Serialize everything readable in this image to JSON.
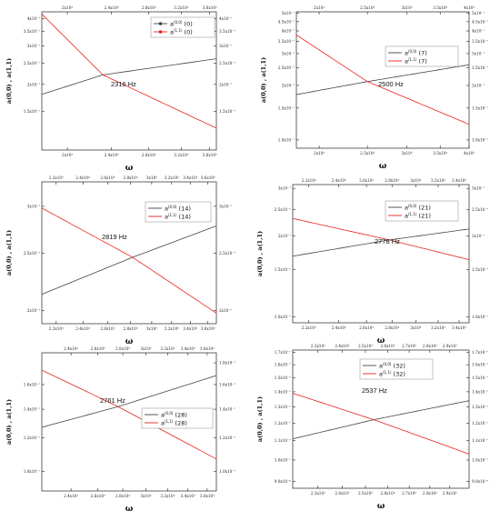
{
  "colors": {
    "black_series": "#444444",
    "red_series": "#e8211f",
    "axis": "#222222"
  },
  "xlabel": "ω",
  "ylabel_panels": "a(0,0) , a(1,1)",
  "chart_data": [
    {
      "type": "line",
      "panel": "n=0",
      "xscale": "log",
      "yscale": "log",
      "xlim": [
        1800,
        3700
      ],
      "ylim": [
        1e-07,
        4.3e-07
      ],
      "x_ticks": [
        2000,
        2400,
        2800,
        3200,
        3600
      ],
      "x_tick_labels_bottom": [
        "2x10³",
        "2.4x10³",
        "2.8x10³",
        "3.2x10³",
        "3.6x10³"
      ],
      "x_tick_labels_top": [
        "2x10³",
        "2.4x10³",
        "2.8x10³",
        "3.2x10³",
        "3.6x10³"
      ],
      "y_ticks_left": [
        1.5e-07,
        2e-07,
        2.5e-07,
        3e-07,
        3.5e-07,
        4e-07
      ],
      "y_tick_labels_left": [
        "1.5x10⁻⁷",
        "2x10⁻⁷",
        "2.5x10⁻⁷",
        "3x10⁻⁷",
        "3.5x10⁻⁷",
        "4x10⁻⁷"
      ],
      "y_ticks_right": [
        1.5e-07,
        2e-07,
        2.5e-07,
        3e-07,
        3.5e-07,
        4e-07
      ],
      "y_tick_labels_right": [
        "1.5x10⁻⁷",
        "2x10⁻⁷",
        "2.5x10⁻⁷",
        "3x10⁻⁷",
        "3.5x10⁻⁷",
        "4x10⁻⁷"
      ],
      "annotation": "2316 Hz",
      "legend_position": "top-right",
      "legend_markers": true,
      "series": [
        {
          "name": "a(0,0) (0)",
          "label_base": "a",
          "label_sup": "(0,0)",
          "label_tail": " (0)",
          "color": "black",
          "x": [
            1800,
            2316,
            3700
          ],
          "y": [
            1.8e-07,
            2.21e-07,
            2.62e-07
          ]
        },
        {
          "name": "a(1,1) (0)",
          "label_base": "a",
          "label_sup": "(1,1)",
          "label_tail": " (0)",
          "color": "red",
          "x": [
            1800,
            2316,
            3700
          ],
          "y": [
            4.2e-07,
            2.21e-07,
            1.26e-07
          ]
        }
      ]
    },
    {
      "type": "line",
      "panel": "n=7",
      "xscale": "log",
      "yscale": "log",
      "xlim": [
        1800,
        4000
      ],
      "ylim": [
        9e-08,
        5.1e-07
      ],
      "x_ticks": [
        2000,
        2500,
        3000,
        3500,
        4000
      ],
      "x_tick_labels_bottom": [
        "2x10³",
        "2.5x10³",
        "3x10³",
        "3.5x10³",
        "4x10³"
      ],
      "x_tick_labels_top": [
        "2x10³",
        "2.5x10³",
        "3x10³",
        "3.5x10³",
        "4x10³"
      ],
      "y_ticks_left": [
        1e-07,
        1.5e-07,
        2e-07,
        2.5e-07,
        3e-07,
        3.5e-07,
        4e-07,
        4.5e-07,
        5e-07
      ],
      "y_tick_labels_left": [
        "1.0x10⁻⁷",
        "1.5x10⁻⁷",
        "2x10⁻⁷",
        "2.5x10⁻⁷",
        "3x10⁻⁷",
        "3.5x10⁻⁷",
        "4x10⁻⁷",
        "4.5x10⁻⁷",
        "5x10⁻⁷"
      ],
      "y_ticks_right": [
        1e-07,
        1.5e-07,
        2e-07,
        2.5e-07,
        3e-07,
        3.5e-07,
        4e-07,
        4.5e-07,
        5e-07
      ],
      "y_tick_labels_right": [
        "1.0x10⁻⁷",
        "1.5x10⁻⁷",
        "2x10⁻⁷",
        "2.5x10⁻⁷",
        "3x10⁻⁷",
        "3.5x10⁻⁷",
        "4x10⁻⁷",
        "4.5x10⁻⁷",
        "5x10⁻⁷"
      ],
      "annotation": "2500 Hz",
      "legend_position": "top-right",
      "legend_markers": false,
      "series": [
        {
          "name": "a(0,0) (7)",
          "label_base": "a",
          "label_sup": "(0,0)",
          "label_tail": " (7)",
          "color": "black",
          "x": [
            1800,
            2500,
            4000
          ],
          "y": [
            1.78e-07,
            2.1e-07,
            2.6e-07
          ]
        },
        {
          "name": "a(1,1) (7)",
          "label_base": "a",
          "label_sup": "(1,1)",
          "label_tail": " (7)",
          "color": "red",
          "x": [
            1800,
            2500,
            4000
          ],
          "y": [
            3.8e-07,
            2.1e-07,
            1.22e-07
          ]
        }
      ]
    },
    {
      "type": "line",
      "panel": "n=14",
      "xscale": "log",
      "yscale": "log",
      "xlim": [
        2100,
        3700
      ],
      "ylim": [
        1.9e-07,
        3.3e-07
      ],
      "x_ticks": [
        2200,
        2400,
        2600,
        2800,
        3000,
        3200,
        3400,
        3600
      ],
      "x_tick_labels_bottom": [
        "2.2x10³",
        "2.4x10³",
        "2.6x10³",
        "2.8x10³",
        "3x10³",
        "3.2x10³",
        "3.4x10³",
        "3.6x10³"
      ],
      "x_tick_labels_top": [
        "2.2x10³",
        "2.4x10³",
        "2.6x10³",
        "2.8x10³",
        "3x10³",
        "3.2x10³",
        "3.4x10³",
        "3.6x10³"
      ],
      "y_ticks_left": [
        2e-07,
        2.5e-07,
        3e-07
      ],
      "y_tick_labels_left": [
        "2x10⁻⁷",
        "2.5x10⁻⁷",
        "3x10⁻⁷"
      ],
      "y_ticks_right": [
        2e-07,
        2.5e-07,
        3e-07
      ],
      "y_tick_labels_right": [
        "2x10⁻⁷",
        "2.5x10⁻⁷",
        "3x10⁻⁷"
      ],
      "annotation": "2819 Hz",
      "legend_position": "top-right",
      "legend_markers": false,
      "series": [
        {
          "name": "a(0,0) (14)",
          "label_base": "a",
          "label_sup": "(0,0)",
          "label_tail": " (14)",
          "color": "black",
          "x": [
            2100,
            2819,
            3700
          ],
          "y": [
            2.13e-07,
            2.46e-07,
            2.78e-07
          ]
        },
        {
          "name": "a(1,1) (14)",
          "label_base": "a",
          "label_sup": "(1,1)",
          "label_tail": " (14)",
          "color": "red",
          "x": [
            2100,
            2819,
            3700
          ],
          "y": [
            2.98e-07,
            2.46e-07,
            1.98e-07
          ]
        }
      ]
    },
    {
      "type": "line",
      "panel": "n=21",
      "xscale": "log",
      "yscale": "log",
      "xlim": [
        2100,
        3500
      ],
      "ylim": [
        9.5e-08,
        3.1e-07
      ],
      "x_ticks": [
        2200,
        2400,
        2600,
        2800,
        3000,
        3200,
        3400
      ],
      "x_tick_labels_bottom": [
        "2.2x10³",
        "2.4x10³",
        "2.6x10³",
        "2.8x10³",
        "3x10³",
        "3.2x10³",
        "3.4x10³"
      ],
      "x_tick_labels_top": [
        "2.2x10³",
        "2.4x10³",
        "2.6x10³",
        "2.8x10³",
        "3x10³",
        "3.2x10³",
        "3.4x10³"
      ],
      "y_ticks_left": [
        1e-07,
        1.5e-07,
        2e-07,
        2.5e-07,
        3e-07
      ],
      "y_tick_labels_left": [
        "1.0x10⁻⁷",
        "1.5x10⁻⁷",
        "2x10⁻⁷",
        "2.5x10⁻⁷",
        "3x10⁻⁷"
      ],
      "y_ticks_right": [
        1e-07,
        1.5e-07,
        2e-07,
        2.5e-07,
        3e-07
      ],
      "y_tick_labels_right": [
        "1.0x10⁻⁷",
        "1.5x10⁻⁷",
        "2x10⁻⁷",
        "2.5x10⁻⁷",
        "3x10⁻⁷"
      ],
      "annotation": "2778 Hz",
      "legend_position": "top-right",
      "legend_markers": false,
      "series": [
        {
          "name": "a(0,0) (21)",
          "label_base": "a",
          "label_sup": "(0,0)",
          "label_tail": " (21)",
          "color": "black",
          "x": [
            2100,
            2778,
            3500
          ],
          "y": [
            1.68e-07,
            1.93e-07,
            2.12e-07
          ]
        },
        {
          "name": "a(1,1) (21)",
          "label_base": "a",
          "label_sup": "(1,1)",
          "label_tail": " (21)",
          "color": "red",
          "x": [
            2100,
            2778,
            3500
          ],
          "y": [
            2.32e-07,
            1.93e-07,
            1.63e-07
          ]
        }
      ]
    },
    {
      "type": "line",
      "panel": "n=28",
      "xscale": "log",
      "yscale": "log",
      "xlim": [
        2200,
        3700
      ],
      "ylim": [
        9e-08,
        1.9e-07
      ],
      "x_ticks": [
        2400,
        2600,
        2800,
        3000,
        3200,
        3400,
        3600
      ],
      "x_tick_labels_bottom": [
        "2.4x10³",
        "2.6x10³",
        "2.8x10³",
        "3x10³",
        "3.2x10³",
        "3.4x10³",
        "3.6x10³"
      ],
      "x_tick_labels_top": [
        "2.4x10³",
        "2.6x10³",
        "2.8x10³",
        "3x10³",
        "3.2x10³",
        "3.4x10³",
        "3.6x10³"
      ],
      "y_ticks_left": [
        1e-07,
        1.2e-07,
        1.4e-07,
        1.6e-07
      ],
      "y_tick_labels_left": [
        "1.0x10⁻⁷",
        "1.2x10⁻⁷",
        "1.4x10⁻⁷",
        "1.6x10⁻⁷"
      ],
      "y_ticks_right": [
        1e-07,
        1.2e-07,
        1.4e-07,
        1.6e-07,
        1.8e-07
      ],
      "y_tick_labels_right": [
        "1.0x10⁻⁷",
        "1.2x10⁻⁷",
        "1.4x10⁻⁷",
        "1.6x10⁻⁷",
        "1.8x10⁻⁷"
      ],
      "annotation": "2761 Hz",
      "legend_position": "center-right",
      "legend_markers": false,
      "series": [
        {
          "name": "a(0,0) (28)",
          "label_base": "a",
          "label_sup": "(0,0)",
          "label_tail": " (28)",
          "color": "black",
          "x": [
            2200,
            2761,
            3700
          ],
          "y": [
            1.27e-07,
            1.42e-07,
            1.68e-07
          ]
        },
        {
          "name": "a(1,1) (28)",
          "label_base": "a",
          "label_sup": "(1,1)",
          "label_tail": " (28)",
          "color": "red",
          "x": [
            2200,
            2761,
            3700
          ],
          "y": [
            1.73e-07,
            1.42e-07,
            1.07e-07
          ]
        }
      ]
    },
    {
      "type": "line",
      "panel": "n=32",
      "xscale": "log",
      "yscale": "log",
      "xlim": [
        2200,
        3000
      ],
      "ylim": [
        8.7e-08,
        1.72e-07
      ],
      "x_ticks": [
        2300,
        2400,
        2500,
        2600,
        2700,
        2800,
        2900
      ],
      "x_tick_labels_bottom": [
        "2.3x10³",
        "2.4x10³",
        "2.5x10³",
        "2.6x10³",
        "2.7x10³",
        "2.8x10³",
        "2.9x10³"
      ],
      "x_tick_labels_top": [
        "2.3x10³",
        "2.4x10³",
        "2.5x10³",
        "2.6x10³",
        "2.7x10³",
        "2.8x10³",
        "2.9x10³"
      ],
      "y_ticks_left": [
        9e-08,
        1e-07,
        1.1e-07,
        1.2e-07,
        1.3e-07,
        1.4e-07,
        1.5e-07,
        1.6e-07,
        1.7e-07
      ],
      "y_tick_labels_left": [
        "9.0x10⁻⁸",
        "1.0x10⁻⁷",
        "1.1x10⁻⁷",
        "1.2x10⁻⁷",
        "1.3x10⁻⁷",
        "1.4x10⁻⁷",
        "1.5x10⁻⁷",
        "1.6x10⁻⁷",
        "1.7x10⁻⁷"
      ],
      "y_ticks_right": [
        9e-08,
        1e-07,
        1.1e-07,
        1.2e-07,
        1.3e-07,
        1.4e-07,
        1.5e-07,
        1.6e-07,
        1.7e-07
      ],
      "y_tick_labels_right": [
        "9.0x10⁻⁸",
        "1.0x10⁻⁷",
        "1.1x10⁻⁷",
        "1.2x10⁻⁷",
        "1.3x10⁻⁷",
        "1.4x10⁻⁷",
        "1.5x10⁻⁷",
        "1.6x10⁻⁷",
        "1.7x10⁻⁷"
      ],
      "annotation": "2537 Hz",
      "legend_position": "top-left",
      "legend_markers": false,
      "series": [
        {
          "name": "a(0,0) (32)",
          "label_base": "a",
          "label_sup": "(0,0)",
          "label_tail": " (32)",
          "color": "black",
          "x": [
            2200,
            2537,
            3000
          ],
          "y": [
            1.11e-07,
            1.22e-07,
            1.34e-07
          ]
        },
        {
          "name": "a(1,1) (32)",
          "label_base": "a",
          "label_sup": "(1,1)",
          "label_tail": " (32)",
          "color": "red",
          "x": [
            2200,
            2537,
            3000
          ],
          "y": [
            1.39e-07,
            1.22e-07,
            1.03e-07
          ]
        }
      ]
    }
  ]
}
